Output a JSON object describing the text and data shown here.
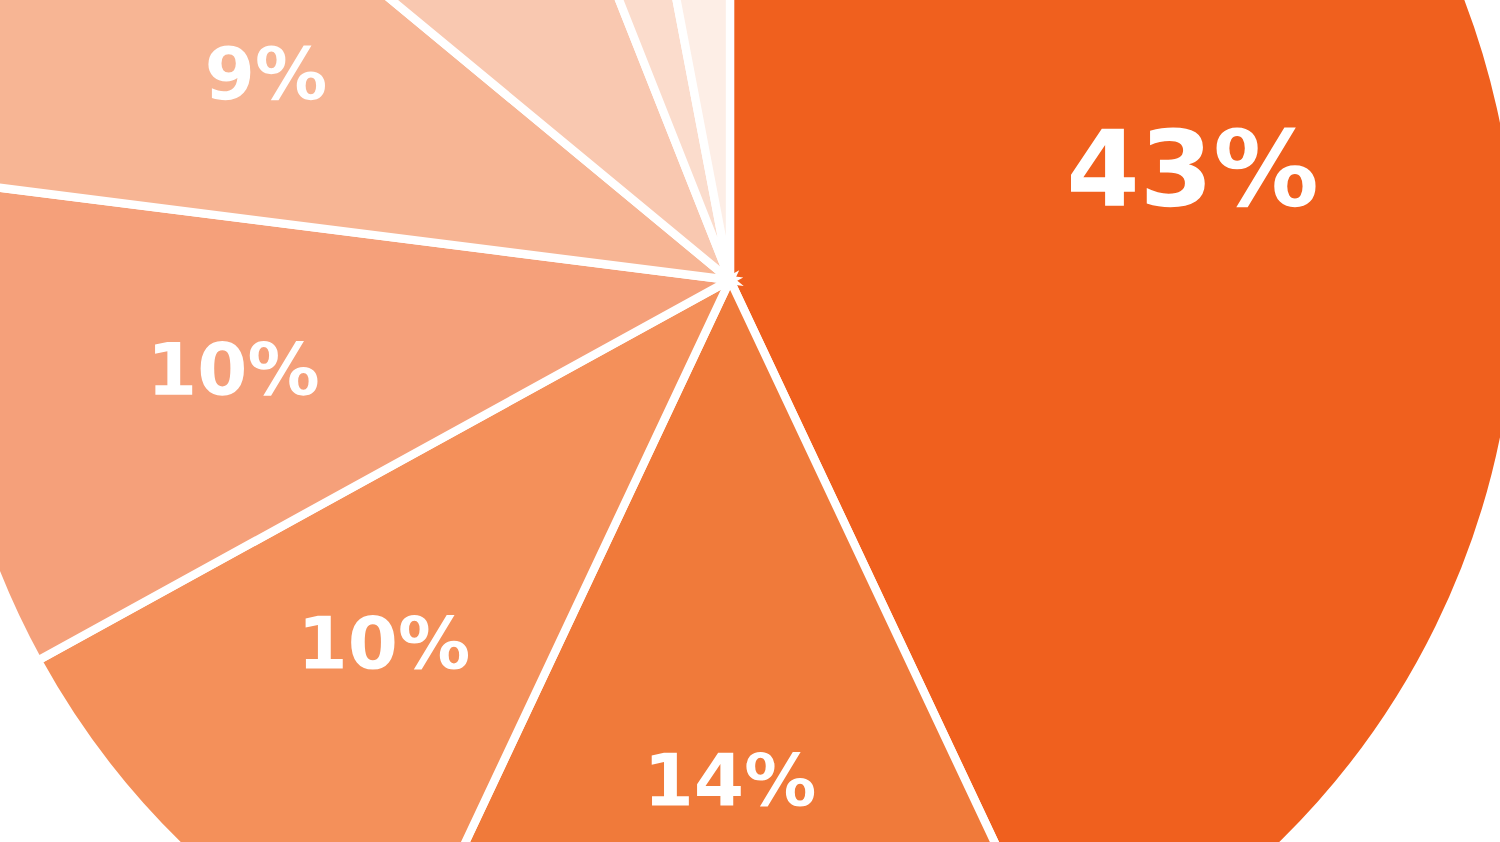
{
  "chart_data": {
    "type": "pie",
    "categories": [
      null,
      null,
      null,
      null,
      null,
      null,
      null,
      null
    ],
    "values": [
      43,
      14,
      10,
      10,
      9,
      8,
      3,
      3
    ],
    "value_labels": [
      "43%",
      "14%",
      "10%",
      "10%",
      "9%",
      null,
      null,
      null
    ],
    "colors": [
      "#f0601e",
      "#f07a3a",
      "#f4905a",
      "#f5a07a",
      "#f7b594",
      "#f9c8b0",
      "#fbdccc",
      "#fdeee6"
    ]
  }
}
